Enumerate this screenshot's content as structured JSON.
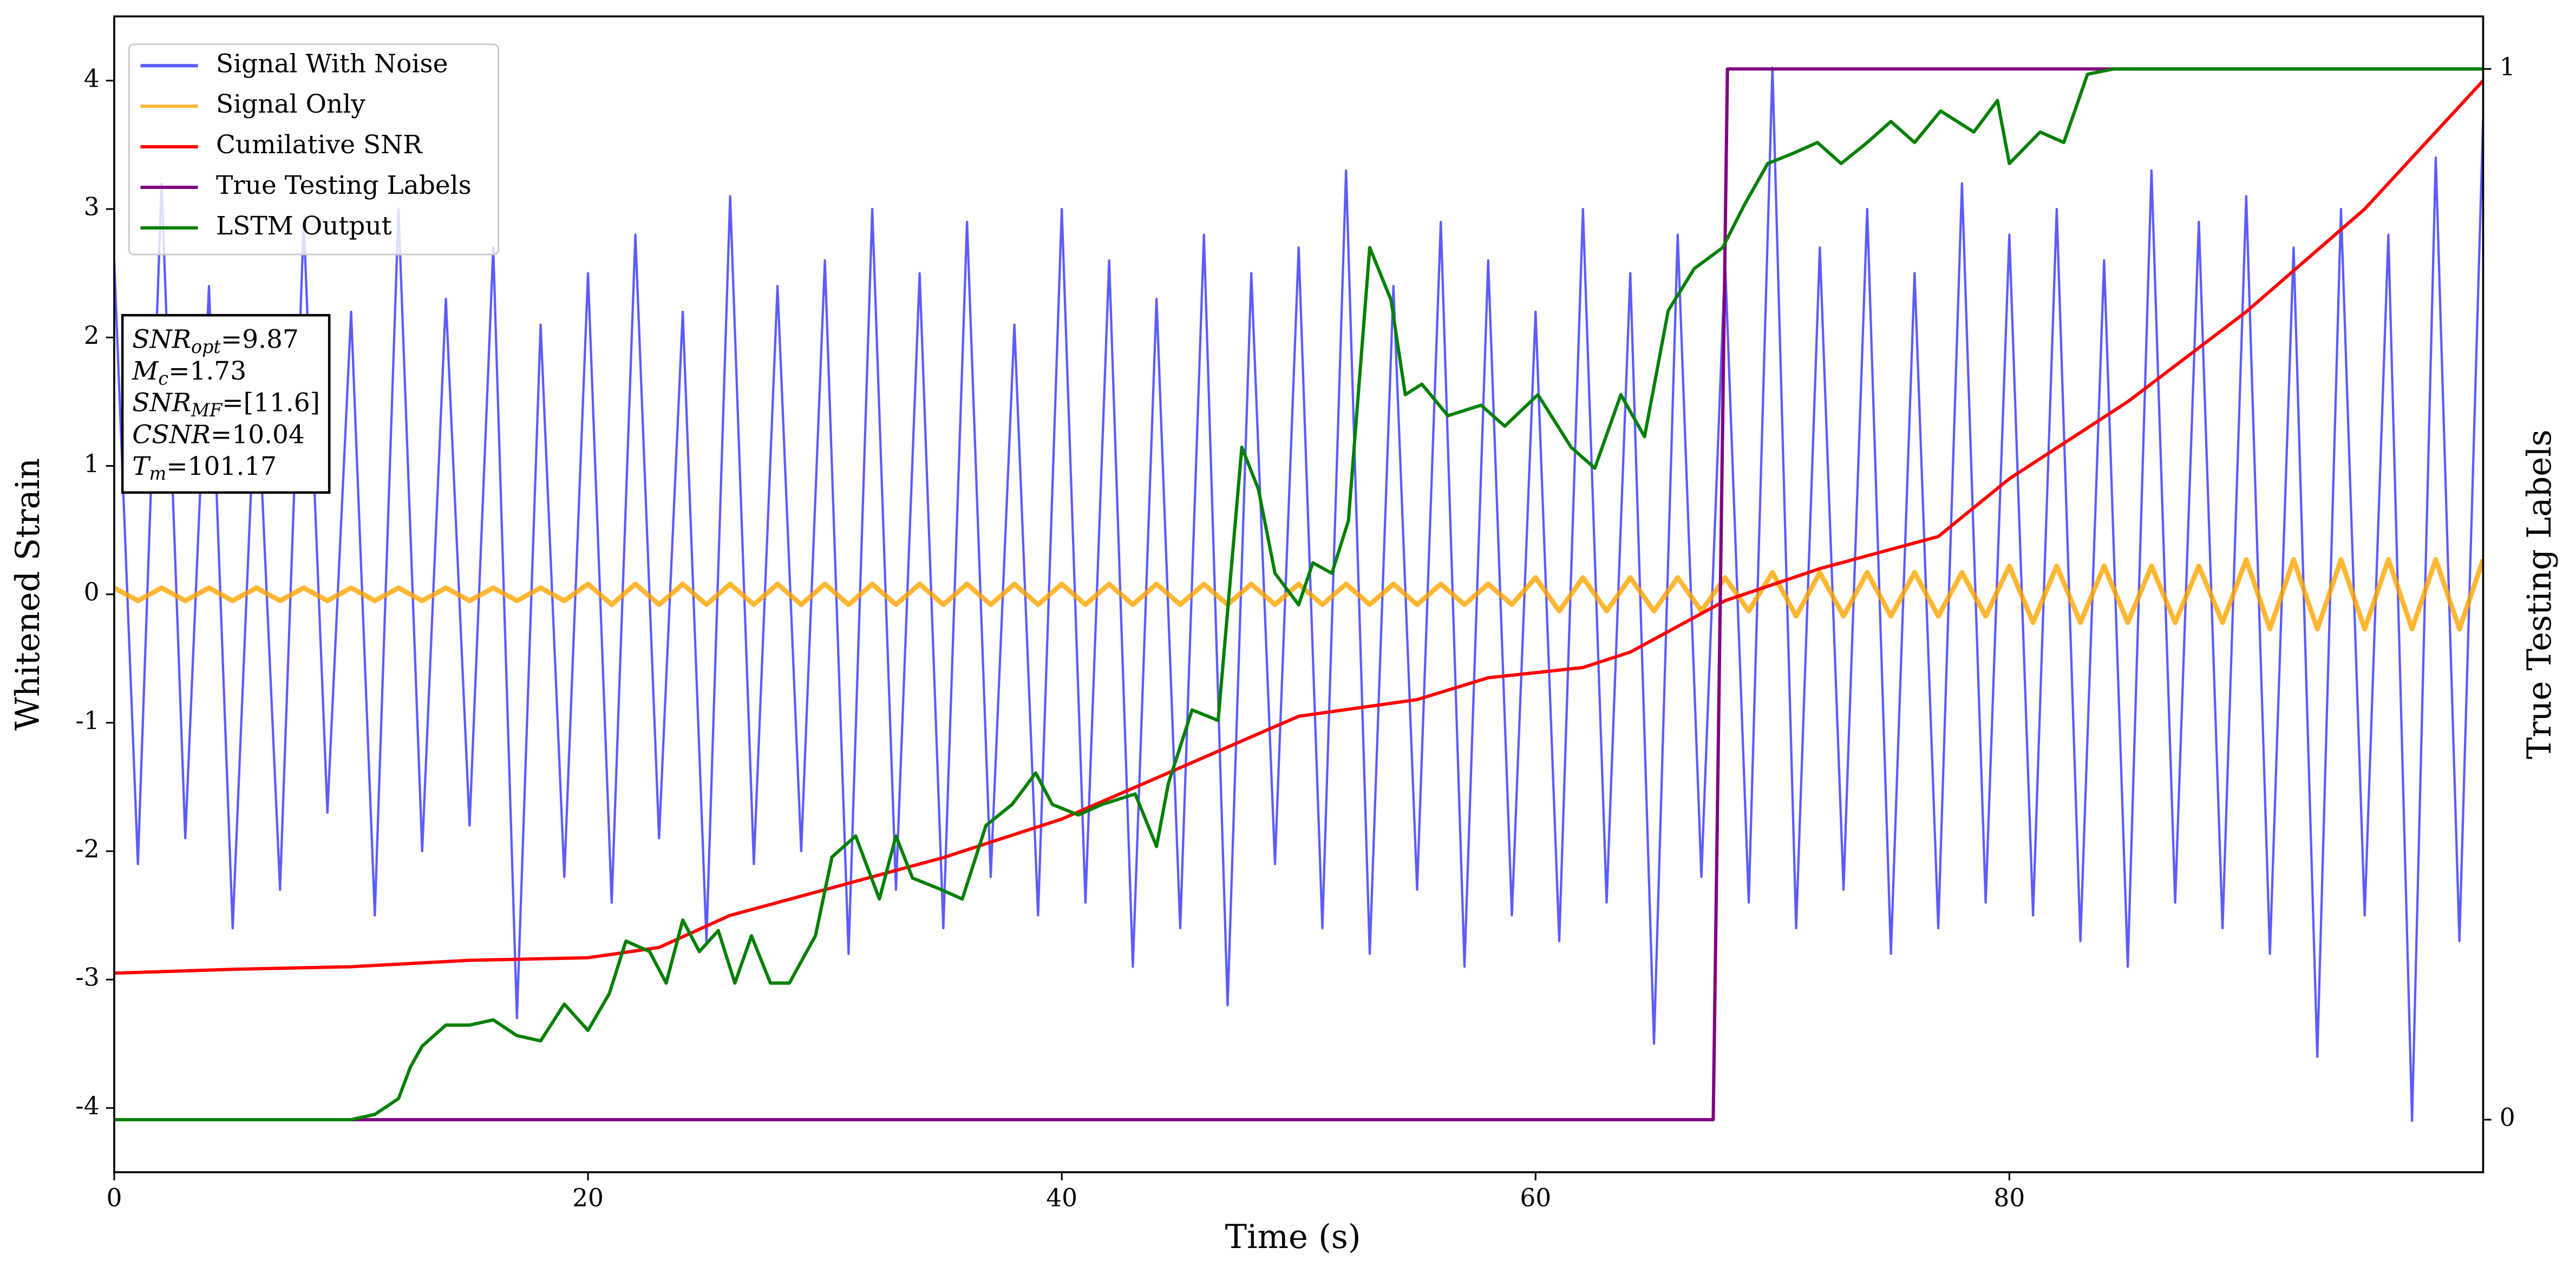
{
  "chart_data": {
    "type": "line",
    "xlabel": "Time (s)",
    "ylabel": "Whitened Strain",
    "y2label": "True Testing Labels",
    "xlim": [
      0,
      100
    ],
    "ylim": [
      -4.5,
      4.5
    ],
    "y2lim": [
      -0.05,
      1.05
    ],
    "xticks": [
      0,
      20,
      40,
      60,
      80
    ],
    "yticks": [
      -4,
      -3,
      -2,
      -1,
      0,
      1,
      2,
      3,
      4
    ],
    "y2ticks": [
      0,
      1
    ],
    "legend": "upper left",
    "series": [
      {
        "name": "Signal With Noise",
        "color": "#3333ff",
        "x": [
          0,
          1,
          2,
          3,
          4,
          5,
          6,
          7,
          8,
          9,
          10,
          11,
          12,
          13,
          14,
          15,
          16,
          17,
          18,
          19,
          20,
          21,
          22,
          23,
          24,
          25,
          26,
          27,
          28,
          29,
          30,
          31,
          32,
          33,
          34,
          35,
          36,
          37,
          38,
          39,
          40,
          41,
          42,
          43,
          44,
          45,
          46,
          47,
          48,
          49,
          50,
          51,
          52,
          53,
          54,
          55,
          56,
          57,
          58,
          59,
          60,
          61,
          62,
          63,
          64,
          65,
          66,
          67,
          68,
          69,
          70,
          71,
          72,
          73,
          74,
          75,
          76,
          77,
          78,
          79,
          80,
          81,
          82,
          83,
          84,
          85,
          86,
          87,
          88,
          89,
          90,
          91,
          92,
          93,
          94,
          95,
          96,
          97,
          98,
          99,
          100
        ],
        "values": [
          2.6,
          -2.1,
          3.2,
          -1.9,
          2.4,
          -2.6,
          1.8,
          -2.3,
          2.9,
          -1.7,
          2.2,
          -2.5,
          3.0,
          -2.0,
          2.3,
          -1.8,
          2.7,
          -3.3,
          2.1,
          -2.2,
          2.5,
          -2.4,
          2.8,
          -1.9,
          2.2,
          -2.7,
          3.1,
          -2.1,
          2.4,
          -2.0,
          2.6,
          -2.8,
          3.0,
          -2.3,
          2.5,
          -2.6,
          2.9,
          -2.2,
          2.1,
          -2.5,
          3.0,
          -2.4,
          2.6,
          -2.9,
          2.3,
          -2.6,
          2.8,
          -3.2,
          2.5,
          -2.1,
          2.7,
          -2.6,
          3.3,
          -2.8,
          2.4,
          -2.3,
          2.9,
          -2.9,
          2.6,
          -2.5,
          2.2,
          -2.7,
          3.0,
          -2.4,
          2.5,
          -3.5,
          2.8,
          -2.2,
          2.6,
          -2.4,
          4.1,
          -2.6,
          2.7,
          -2.3,
          3.0,
          -2.8,
          2.5,
          -2.6,
          3.2,
          -2.4,
          2.8,
          -2.5,
          3.0,
          -2.7,
          2.6,
          -2.9,
          3.3,
          -2.4,
          2.9,
          -2.6,
          3.1,
          -2.8,
          2.7,
          -3.6,
          3.0,
          -2.5,
          2.8,
          -4.1,
          3.4,
          -2.7,
          3.7
        ]
      },
      {
        "name": "Signal Only",
        "color": "orange",
        "x": [
          0,
          1,
          2,
          3,
          4,
          5,
          6,
          7,
          8,
          9,
          10,
          11,
          12,
          13,
          14,
          15,
          16,
          17,
          18,
          19,
          20,
          21,
          22,
          23,
          24,
          25,
          26,
          27,
          28,
          29,
          30,
          31,
          32,
          33,
          34,
          35,
          36,
          37,
          38,
          39,
          40,
          41,
          42,
          43,
          44,
          45,
          46,
          47,
          48,
          49,
          50,
          51,
          52,
          53,
          54,
          55,
          56,
          57,
          58,
          59,
          60,
          61,
          62,
          63,
          64,
          65,
          66,
          67,
          68,
          69,
          70,
          71,
          72,
          73,
          74,
          75,
          76,
          77,
          78,
          79,
          80,
          81,
          82,
          83,
          84,
          85,
          86,
          87,
          88,
          89,
          90,
          91,
          92,
          93,
          94,
          95,
          96,
          97,
          98,
          99,
          100
        ],
        "values": [
          0.05,
          -0.05,
          0.05,
          -0.05,
          0.05,
          -0.05,
          0.05,
          -0.05,
          0.05,
          -0.05,
          0.05,
          -0.05,
          0.05,
          -0.05,
          0.05,
          -0.05,
          0.05,
          -0.05,
          0.05,
          -0.05,
          0.08,
          -0.08,
          0.08,
          -0.08,
          0.08,
          -0.08,
          0.08,
          -0.08,
          0.08,
          -0.08,
          0.08,
          -0.08,
          0.08,
          -0.08,
          0.08,
          -0.08,
          0.08,
          -0.08,
          0.08,
          -0.08,
          0.08,
          -0.08,
          0.08,
          -0.08,
          0.08,
          -0.08,
          0.08,
          -0.08,
          0.08,
          -0.08,
          0.08,
          -0.08,
          0.08,
          -0.08,
          0.08,
          -0.08,
          0.08,
          -0.08,
          0.08,
          -0.08,
          0.13,
          -0.13,
          0.13,
          -0.13,
          0.13,
          -0.13,
          0.13,
          -0.13,
          0.13,
          -0.13,
          0.17,
          -0.17,
          0.17,
          -0.17,
          0.17,
          -0.17,
          0.17,
          -0.17,
          0.17,
          -0.17,
          0.22,
          -0.22,
          0.22,
          -0.22,
          0.22,
          -0.22,
          0.22,
          -0.22,
          0.22,
          -0.22,
          0.27,
          -0.27,
          0.27,
          -0.27,
          0.27,
          -0.27,
          0.27,
          -0.27,
          0.27,
          -0.27,
          0.27
        ]
      },
      {
        "name": "Cumilative SNR",
        "color": "red",
        "x": [
          0,
          5,
          10,
          15,
          20,
          23,
          26,
          30,
          35,
          40,
          45,
          50,
          55,
          58,
          62,
          64,
          68,
          72,
          77,
          80,
          85,
          90,
          95,
          100
        ],
        "values": [
          -2.95,
          -2.92,
          -2.9,
          -2.85,
          -2.83,
          -2.75,
          -2.5,
          -2.3,
          -2.05,
          -1.75,
          -1.35,
          -0.95,
          -0.82,
          -0.65,
          -0.57,
          -0.45,
          -0.05,
          0.2,
          0.45,
          0.9,
          1.5,
          2.2,
          3.0,
          4.0
        ]
      },
      {
        "name": "True Testing Labels",
        "color": "purple",
        "axis": "y2",
        "x": [
          0,
          67.5,
          68.1,
          100
        ],
        "values": [
          0,
          0,
          1,
          1
        ]
      },
      {
        "name": "LSTM Output",
        "color": "green",
        "axis": "y2",
        "x": [
          0,
          10,
          11,
          12,
          12.5,
          13,
          14,
          15,
          16,
          17,
          18,
          19,
          20,
          20.9,
          21.6,
          22.6,
          23.3,
          24,
          24.7,
          25.5,
          26.2,
          26.9,
          27.7,
          28.5,
          29.6,
          30.3,
          31.3,
          32.3,
          33,
          33.7,
          34.8,
          35.8,
          36.8,
          37.9,
          38.9,
          39.6,
          40.7,
          41.7,
          43.1,
          44,
          44.5,
          45.5,
          46.6,
          47.6,
          48.3,
          49,
          50,
          50.6,
          51.4,
          52.1,
          53,
          53.9,
          54.5,
          55.2,
          56.3,
          57.7,
          58.7,
          60.1,
          61.5,
          62.5,
          63.6,
          64.6,
          65.6,
          66.7,
          67.9,
          68.8,
          69.8,
          70.9,
          71.9,
          72.9,
          74,
          75,
          76,
          77.1,
          78.5,
          79.5,
          80,
          81.3,
          82.3,
          83.3,
          84.4,
          100
        ],
        "values": [
          0,
          0,
          0.005,
          0.02,
          0.05,
          0.07,
          0.09,
          0.09,
          0.095,
          0.08,
          0.075,
          0.11,
          0.085,
          0.12,
          0.17,
          0.16,
          0.13,
          0.19,
          0.16,
          0.18,
          0.13,
          0.175,
          0.13,
          0.13,
          0.175,
          0.25,
          0.27,
          0.21,
          0.27,
          0.23,
          0.22,
          0.21,
          0.28,
          0.3,
          0.33,
          0.3,
          0.29,
          0.3,
          0.31,
          0.26,
          0.32,
          0.39,
          0.38,
          0.64,
          0.6,
          0.52,
          0.49,
          0.53,
          0.52,
          0.57,
          0.83,
          0.78,
          0.69,
          0.7,
          0.67,
          0.68,
          0.66,
          0.69,
          0.64,
          0.62,
          0.69,
          0.65,
          0.77,
          0.81,
          0.83,
          0.87,
          0.91,
          0.92,
          0.93,
          0.91,
          0.93,
          0.95,
          0.93,
          0.96,
          0.94,
          0.97,
          0.91,
          0.94,
          0.93,
          0.995,
          1,
          1
        ]
      }
    ],
    "annotation": [
      {
        "name": "SNR",
        "sub": "opt",
        "text": "=9.87"
      },
      {
        "name": "M",
        "sub": "c",
        "text": "=1.73"
      },
      {
        "name": "SNR",
        "sub": "MF",
        "text": "=[11.6]"
      },
      {
        "name": "CSNR",
        "text": "=10.04"
      },
      {
        "name": "T",
        "sub": "m",
        "text": "=101.17"
      }
    ]
  }
}
